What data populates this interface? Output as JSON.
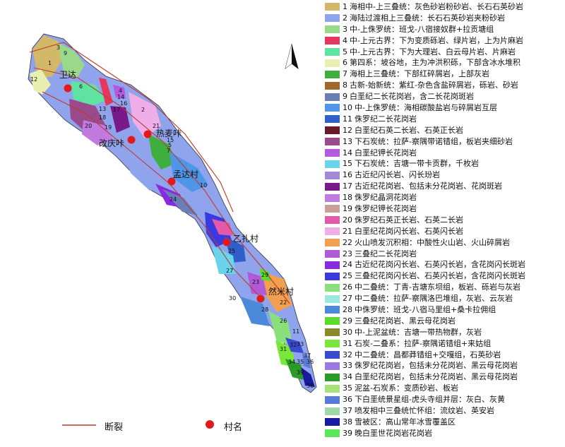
{
  "colors": {
    "fault": "#c0392b",
    "village": "#e31a1c"
  },
  "north_arrow": {
    "label": "north-arrow"
  },
  "villages": [
    {
      "name": "卫达"
    },
    {
      "name": "热麦咔"
    },
    {
      "name": "改庆咔"
    },
    {
      "name": "孟达村"
    },
    {
      "name": "乙扎村"
    },
    {
      "name": "然米村"
    }
  ],
  "unit_labels": [
    "1",
    "3",
    "9",
    "12",
    "6",
    "4",
    "14",
    "16",
    "17",
    "13",
    "18",
    "19",
    "20",
    "2",
    "21",
    "15",
    "5",
    "7",
    "10",
    "24",
    "25",
    "27",
    "29",
    "23",
    "30",
    "22",
    "28",
    "26",
    "11",
    "33",
    "31",
    "32",
    "37",
    "34",
    "35",
    "36",
    "39",
    "38"
  ],
  "legend": [
    {
      "num": "1",
      "text": "海相中-上三叠统：灰色砂岩粉砂岩、长石石英砂岩",
      "color": "#d4b86a"
    },
    {
      "num": "2",
      "text": "海陆过渡相上三叠统：长石石英砂岩夹粉砂岩",
      "color": "#8fa4ec"
    },
    {
      "num": "3",
      "text": "中-上侏罗统：班戈-八宿接奴群+拉贡塘组",
      "color": "#9ad98a"
    },
    {
      "num": "4",
      "text": "中-上元古界：下为变质砾岩、绿片岩，上为片麻岩",
      "color": "#e8375e"
    },
    {
      "num": "5",
      "text": "中-上元古界：下为大理岩、白云母片岩、片麻岩",
      "color": "#5fe3a0"
    },
    {
      "num": "6",
      "text": "第四系：坡谷地，主为冲洪积砾，下部含冰水堆积",
      "color": "#e9efb0"
    },
    {
      "num": "7",
      "text": "海相上三叠统：下部红碎屑岩，上部灰岩",
      "color": "#3fae3f"
    },
    {
      "num": "8",
      "text": "古新-始新统：紫红-杂色含盐碎屑岩，砾岩、砂岩",
      "color": "#a06a2a"
    },
    {
      "num": "9",
      "text": "白垩纪二长花岗岩，含二长花岗斑岩",
      "color": "#6a7fb5"
    },
    {
      "num": "10",
      "text": "中-上侏罗统：海相碳酸盐岩与碎屑岩互层",
      "color": "#4f96e8"
    },
    {
      "num": "11",
      "text": "侏罗纪二长花岗岩",
      "color": "#2f5fc8"
    },
    {
      "num": "12",
      "text": "白垩纪石英二长岩、石英正长岩",
      "color": "#6a1a2a"
    },
    {
      "num": "13",
      "text": "下石炭统：拉萨-察隅带诺错组，板岩夹细砂岩",
      "color": "#9a4a8a"
    },
    {
      "num": "14",
      "text": "白垩纪钾长花岗岩",
      "color": "#b45ae0"
    },
    {
      "num": "15",
      "text": "下石炭统：吉塘一带卡贡群，千枚岩",
      "color": "#6ad4ec"
    },
    {
      "num": "16",
      "text": "古近纪闪长岩、闪长玢岩",
      "color": "#a08ad8"
    },
    {
      "num": "17",
      "text": "古近纪花岗岩、包括未分花岗岩、花岗斑岩",
      "color": "#7a1a8a"
    },
    {
      "num": "18",
      "text": "侏罗纪晶洞花岗岩",
      "color": "#c07ae0"
    },
    {
      "num": "19",
      "text": "侏罗纪钾长花岗岩",
      "color": "#c8a098"
    },
    {
      "num": "20",
      "text": "侏罗纪石英正长岩、石英二长岩",
      "color": "#e35aaa"
    },
    {
      "num": "21",
      "text": "白垩纪花岗闪长岩、石英闪长岩",
      "color": "#f0aee8"
    },
    {
      "num": "22",
      "text": "火山喷发沉积相：中酸性火山岩、火山碎屑岩",
      "color": "#f0a050"
    },
    {
      "num": "23",
      "text": "三叠纪二长花岗岩",
      "color": "#b05ad8"
    },
    {
      "num": "24",
      "text": "古近纪花岗闪长岩、石英闪长岩，含花岗闪长斑岩",
      "color": "#8a2ae0"
    },
    {
      "num": "25",
      "text": "三叠纪花岗闪长岩、石英闪长岩，含花岗闪长斑岩",
      "color": "#3a3ae0"
    },
    {
      "num": "26",
      "text": "中二叠统：丁青-吉塘东坝组，板岩、砾岩与灰岩",
      "color": "#8ae07a"
    },
    {
      "num": "27",
      "text": "中二叠统：拉萨-察隅洛巴堆组，灰岩、云灰岩",
      "color": "#9ae8e0"
    },
    {
      "num": "28",
      "text": "中侏罗统：班戈-八宿马里组+桑卡拉佣组",
      "color": "#4a8ad8"
    },
    {
      "num": "29",
      "text": "三叠纪花岗岩、黑云母花岗岩",
      "color": "#5adc2a"
    },
    {
      "num": "30",
      "text": "中-上泥盆统：吉塘一带热物群，灰岩",
      "color": "#8a8a2a"
    },
    {
      "num": "31",
      "text": "石炭-二叠系：拉萨-察隅诺错组+来姑组",
      "color": "#7ae83a"
    },
    {
      "num": "32",
      "text": "中二叠统：昌都莽错组+交嘎组，石英砂岩",
      "color": "#3a4ad0"
    },
    {
      "num": "33",
      "text": "侏罗纪花岗岩，包括未分花岗岩、黑云母花岗岩",
      "color": "#9a7ae0"
    },
    {
      "num": "34",
      "text": "白垩纪花岗岩，包括未分花岗岩、黑云母花岗岩",
      "color": "#2a9a2a"
    },
    {
      "num": "35",
      "text": "泥盆-石炭系：变质砂岩、板岩",
      "color": "#a8e07a"
    },
    {
      "num": "36",
      "text": "下白垩统景星组-虎头寺组并层：灰白、灰黄",
      "color": "#5a7ad8"
    },
    {
      "num": "37",
      "text": "喷发相中三叠统忙怀组：流纹岩、英安岩",
      "color": "#a0d8a8"
    },
    {
      "num": "38",
      "text": "雪被区：高山常年冰雪覆盖区",
      "color": "#1a1aa0"
    },
    {
      "num": "39",
      "text": "晚白垩世花岗岩花岗岩",
      "color": "#5ae85a"
    }
  ],
  "bottom_legend": {
    "fault_label": "断裂",
    "village_label": "村名"
  }
}
